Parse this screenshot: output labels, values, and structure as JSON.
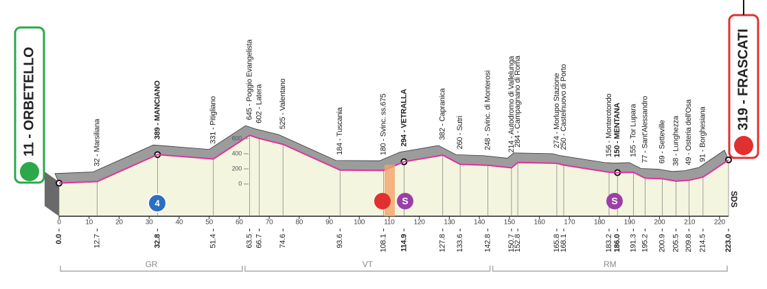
{
  "chart_data": {
    "type": "area",
    "waypoints": [
      {
        "label": "11 - ORBETELLO",
        "altitude": 11,
        "km": {
          "value": 0,
          "label": "0.0"
        },
        "bold": true
      },
      {
        "label": "32 - Marsiliana",
        "altitude": 32,
        "km": 12.7
      },
      {
        "label": "389 - MANCIANO",
        "altitude": 389,
        "km": 32.8,
        "bold": true
      },
      {
        "label": "331 - Pitigliano",
        "altitude": 331,
        "km": 51.4
      },
      {
        "label": "645 - Poggio Evangelista",
        "altitude": 645,
        "km": 63.5
      },
      {
        "label": "602 - Latera",
        "altitude": 602,
        "km": 66.7
      },
      {
        "label": "525 - Valentano",
        "altitude": 525,
        "km": 74.6
      },
      {
        "label": "184 - Tuscania",
        "altitude": 184,
        "km": 93.6
      },
      {
        "label": "180 - Svinc. ss.675",
        "altitude": 180,
        "km": 108.1
      },
      {
        "label": "294 - VETRALLA",
        "altitude": 294,
        "km": 114.9,
        "bold": true
      },
      {
        "label": "382 - Capranica",
        "altitude": 382,
        "km": 127.8
      },
      {
        "label": "260 - Sutri",
        "altitude": 260,
        "km": 133.6
      },
      {
        "label": "248 - Svinc. di Monterosi",
        "altitude": 248,
        "km": 142.8
      },
      {
        "label": "214 - Autodromo di Vallelunga",
        "altitude": 214,
        "km": 150.7
      },
      {
        "label": "284 - Campagnano di Roma",
        "altitude": 284,
        "km": 152.8
      },
      {
        "label": "274 - Morlupo Stazione",
        "altitude": 274,
        "km": 165.8
      },
      {
        "label": "250 - Castelnuovo di Porto",
        "altitude": 250,
        "km": 168.1
      },
      {
        "label": "156 - Monterotondo",
        "altitude": 156,
        "km": 183.2
      },
      {
        "label": "150 - MENTANA",
        "altitude": 150,
        "km": {
          "value": 186,
          "label": "186.0"
        },
        "bold": true
      },
      {
        "label": "155 - Tor Lupara",
        "altitude": 155,
        "km": 191.3
      },
      {
        "label": "77 - Sant'Alessandro",
        "altitude": 77,
        "km": 195.2
      },
      {
        "label": "69 - Setteville",
        "altitude": 69,
        "km": 200.9
      },
      {
        "label": "38 - Lunghezza",
        "altitude": 38,
        "km": 205.5
      },
      {
        "label": "49 - Osteria dell'Osa",
        "altitude": 49,
        "km": 209.8
      },
      {
        "label": "91 - Borghesiana",
        "altitude": 91,
        "km": 214.5
      },
      {
        "label": "319 - FRASCATI",
        "altitude": 319,
        "km": {
          "value": 223,
          "label": "223.0"
        },
        "bold": true
      }
    ],
    "xlim": [
      0,
      223
    ],
    "xticks": [
      0,
      10,
      20,
      30,
      40,
      50,
      60,
      70,
      80,
      90,
      100,
      110,
      120,
      130,
      140,
      150,
      160,
      170,
      180,
      190,
      200,
      210,
      220
    ],
    "ylim": [
      0,
      600
    ],
    "yticks": [
      0,
      200,
      400,
      600
    ],
    "line_color": "#e0309a",
    "provinces": [
      {
        "name": "GR",
        "km_range": [
          0,
          61.5
        ]
      },
      {
        "name": "VT",
        "km_range": [
          61.5,
          144
        ]
      },
      {
        "name": "RM",
        "km_range": [
          144,
          223
        ]
      }
    ],
    "kom_category": "4",
    "sprint_symbol": "S",
    "logo": "SDS"
  }
}
